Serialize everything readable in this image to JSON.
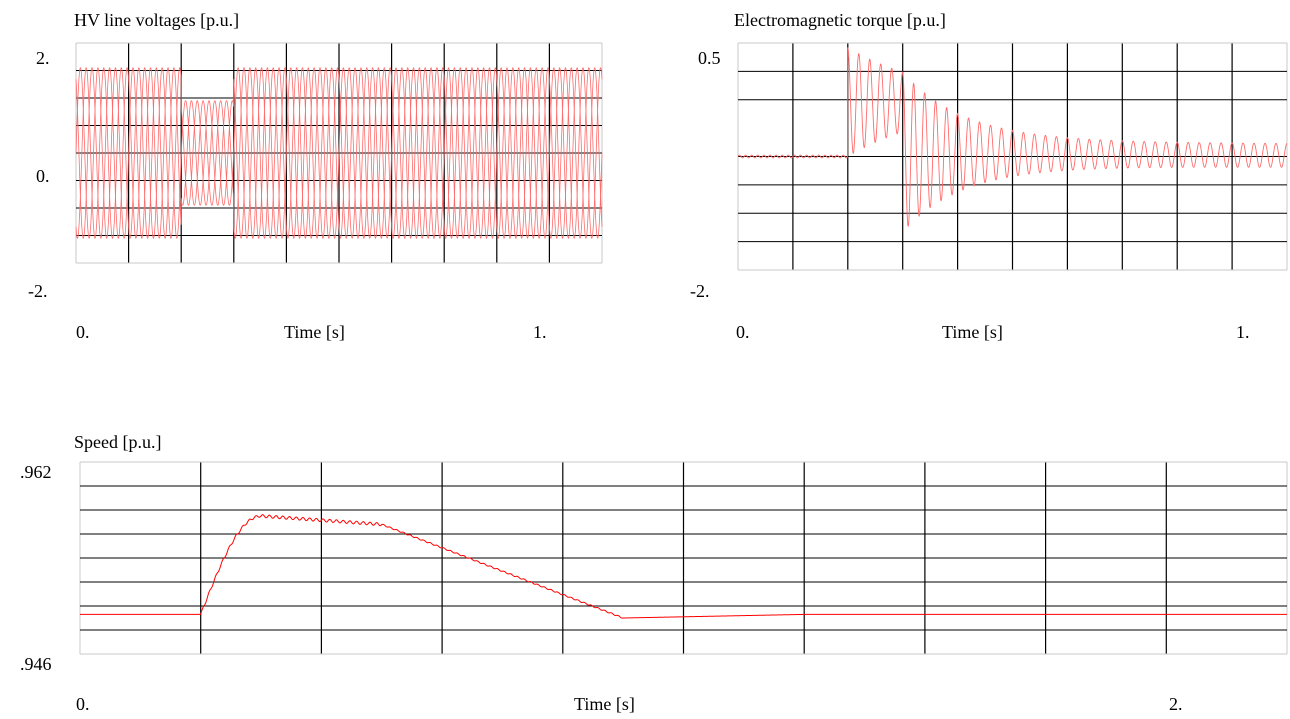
{
  "chart_data": [
    {
      "type": "line",
      "title": "HV line voltages [p.u.]",
      "xlabel": "Time [s]",
      "ylabel": "",
      "xlim": [
        0,
        1
      ],
      "ylim": [
        -2,
        2
      ],
      "x_tick_labels": [
        "0.",
        "1."
      ],
      "y_tick_labels": [
        "2.",
        "0.",
        "-2."
      ],
      "grid": true,
      "series": [
        {
          "values_description": "",
          "points": [
            [
              0.0,
              1.55
            ],
            [
              0.2,
              1.55
            ],
            [
              0.2,
              0.95
            ],
            [
              0.3,
              0.95
            ],
            [
              0.3,
              1.55
            ],
            [
              1.0,
              1.55
            ]
          ]
        }
      ],
      "color": "#ff6b6b"
    },
    {
      "type": "line",
      "title": "Electromagnetic torque [p.u.]",
      "xlabel": "Time [s]",
      "ylabel": "",
      "xlim": [
        0,
        1
      ],
      "ylim": [
        -2,
        0.5
      ],
      "x_tick_labels": [
        "0.",
        "1."
      ],
      "y_tick_labels": [
        "0.5",
        "-2."
      ],
      "grid": true,
      "series": [
        {
          "points": [
            [
              0.0,
              -0.75
            ],
            [
              0.2,
              -0.75
            ],
            [
              0.2,
              0.4
            ],
            [
              0.3,
              -0.2
            ],
            [
              0.4,
              -0.9
            ],
            [
              0.5,
              -0.75
            ],
            [
              1.0,
              -0.7
            ]
          ]
        }
      ],
      "color": "#ff6b6b"
    },
    {
      "type": "line",
      "title": "Speed [p.u.]",
      "xlabel": "Time [s]",
      "ylabel": "",
      "xlim": [
        0,
        2
      ],
      "ylim": [
        0.946,
        0.962
      ],
      "x_tick_labels": [
        "0.",
        "2."
      ],
      "y_tick_labels": [
        ".962",
        ".946"
      ],
      "grid": true,
      "series": [
        {
          "points": [
            [
              0.0,
              0.9493
            ],
            [
              0.2,
              0.9493
            ],
            [
              0.3,
              0.9575
            ],
            [
              0.5,
              0.9568
            ],
            [
              0.9,
              0.9492
            ],
            [
              1.2,
              0.9493
            ],
            [
              2.0,
              0.9493
            ]
          ]
        }
      ],
      "color": "#ff0000"
    }
  ]
}
